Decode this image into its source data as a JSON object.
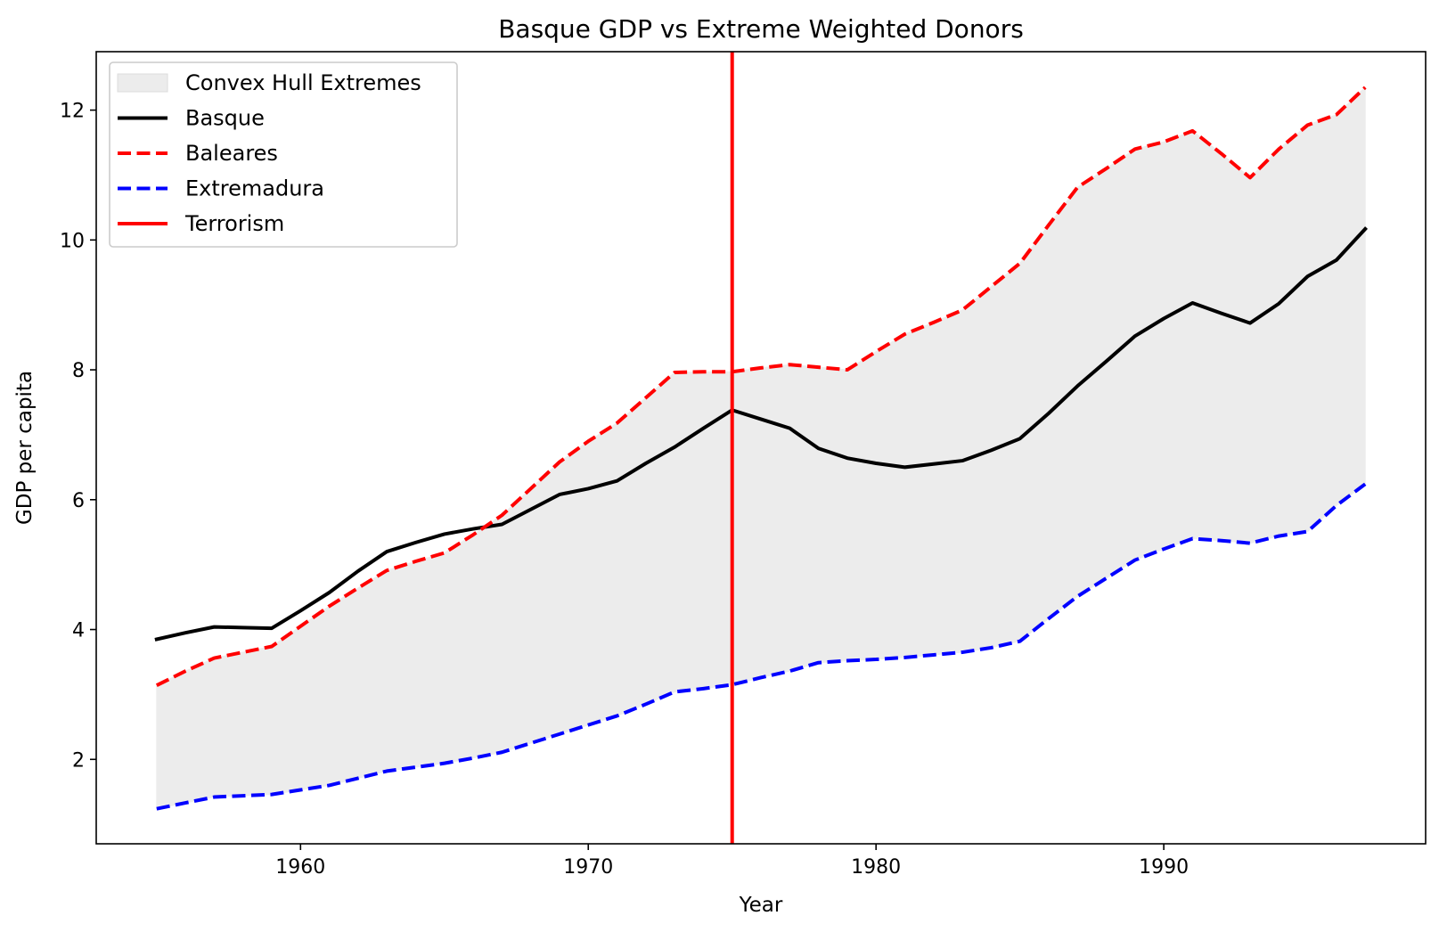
{
  "chart_data": {
    "type": "line",
    "title": "Basque GDP vs Extreme Weighted Donors",
    "xlabel": "Year",
    "ylabel": "GDP per capita",
    "xlim": [
      1952.9,
      1999.1
    ],
    "ylim": [
      0.7,
      12.9
    ],
    "xticks": [
      1960,
      1970,
      1980,
      1990
    ],
    "yticks": [
      2,
      4,
      6,
      8,
      10,
      12
    ],
    "grid": false,
    "legend_position": "top-left",
    "x": [
      1955,
      1956,
      1957,
      1958,
      1959,
      1960,
      1961,
      1962,
      1963,
      1964,
      1965,
      1966,
      1967,
      1968,
      1969,
      1970,
      1971,
      1972,
      1973,
      1974,
      1975,
      1976,
      1977,
      1978,
      1979,
      1980,
      1981,
      1982,
      1983,
      1984,
      1985,
      1986,
      1987,
      1988,
      1989,
      1990,
      1991,
      1992,
      1993,
      1994,
      1995,
      1996,
      1997
    ],
    "series": [
      {
        "name": "Basque",
        "style": "solid",
        "color": "#000000",
        "values": [
          3.85,
          3.95,
          4.04,
          4.03,
          4.02,
          4.29,
          4.57,
          4.9,
          5.2,
          5.34,
          5.47,
          5.55,
          5.62,
          5.85,
          6.08,
          6.17,
          6.29,
          6.56,
          6.81,
          7.1,
          7.38,
          7.24,
          7.1,
          6.79,
          6.64,
          6.56,
          6.5,
          6.55,
          6.6,
          6.76,
          6.94,
          7.33,
          7.75,
          8.13,
          8.52,
          8.79,
          9.03,
          8.87,
          8.72,
          9.02,
          9.44,
          9.69,
          10.17
        ]
      },
      {
        "name": "Baleares",
        "style": "dashed",
        "color": "#ff0000",
        "values": [
          3.14,
          3.36,
          3.56,
          3.65,
          3.74,
          4.05,
          4.36,
          4.64,
          4.91,
          5.05,
          5.18,
          5.46,
          5.76,
          6.17,
          6.58,
          6.9,
          7.18,
          7.57,
          7.96,
          7.97,
          7.97,
          8.03,
          8.08,
          8.04,
          8.0,
          8.28,
          8.55,
          8.73,
          8.92,
          9.28,
          9.64,
          10.23,
          10.81,
          11.1,
          11.4,
          11.51,
          11.68,
          11.33,
          10.96,
          11.4,
          11.77,
          11.93,
          12.35
        ]
      },
      {
        "name": "Extremadura",
        "style": "dashed",
        "color": "#0000ff",
        "values": [
          1.24,
          1.33,
          1.42,
          1.44,
          1.46,
          1.53,
          1.6,
          1.71,
          1.82,
          1.88,
          1.94,
          2.02,
          2.11,
          2.25,
          2.39,
          2.53,
          2.67,
          2.85,
          3.04,
          3.09,
          3.15,
          3.26,
          3.36,
          3.49,
          3.52,
          3.54,
          3.57,
          3.61,
          3.65,
          3.72,
          3.82,
          4.17,
          4.51,
          4.79,
          5.07,
          5.24,
          5.4,
          5.37,
          5.33,
          5.44,
          5.51,
          5.91,
          6.24
        ]
      }
    ],
    "band": {
      "name": "Convex Hull Extremes",
      "color": "#ececec",
      "between": [
        "Extremadura",
        "Baleares"
      ]
    },
    "vline": {
      "name": "Terrorism",
      "x": 1975,
      "color": "#ff0000"
    },
    "legend_order": [
      "Convex Hull Extremes",
      "Basque",
      "Baleares",
      "Extremadura",
      "Terrorism"
    ]
  }
}
